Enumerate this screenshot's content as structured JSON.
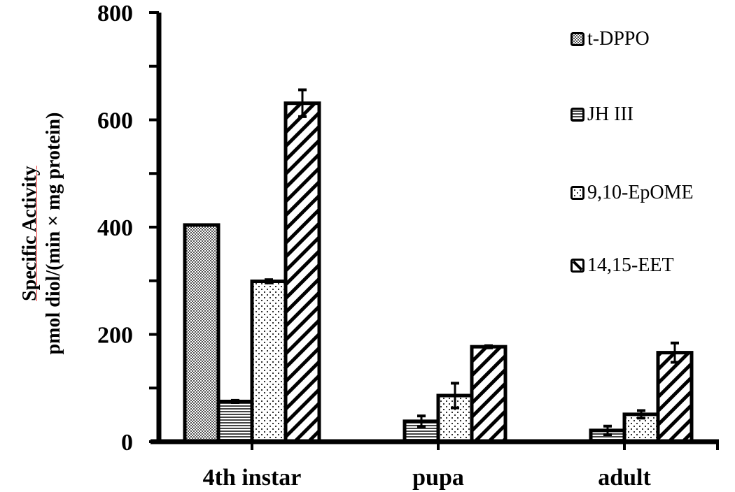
{
  "chart_data": {
    "type": "bar",
    "title": "",
    "xlabel": "",
    "ylabel": [
      "Specific Activity",
      "pmol diol/(min × mg protein)"
    ],
    "ylim": [
      0,
      800
    ],
    "yticks": [
      0,
      200,
      400,
      600,
      800
    ],
    "yminor_ticks": [
      100,
      300,
      500,
      700
    ],
    "grid": false,
    "legend_position": "upper right",
    "categories": [
      "4th instar",
      "pupa",
      "adult"
    ],
    "series": [
      {
        "name": "t-DPPO",
        "pattern": "dense-checker",
        "values": [
          404,
          0,
          0
        ],
        "errors": [
          0,
          0,
          0
        ]
      },
      {
        "name": "JH III",
        "pattern": "horizontal-lines",
        "values": [
          75,
          38,
          21
        ],
        "errors": [
          2,
          10,
          8
        ]
      },
      {
        "name": "9,10-EpOME",
        "pattern": "dots",
        "values": [
          299,
          86,
          51
        ],
        "errors": [
          3,
          23,
          7
        ]
      },
      {
        "name": "14,15-EET",
        "pattern": "diagonal-stripes",
        "values": [
          631,
          177,
          166
        ],
        "errors": [
          25,
          2,
          18
        ]
      }
    ]
  }
}
